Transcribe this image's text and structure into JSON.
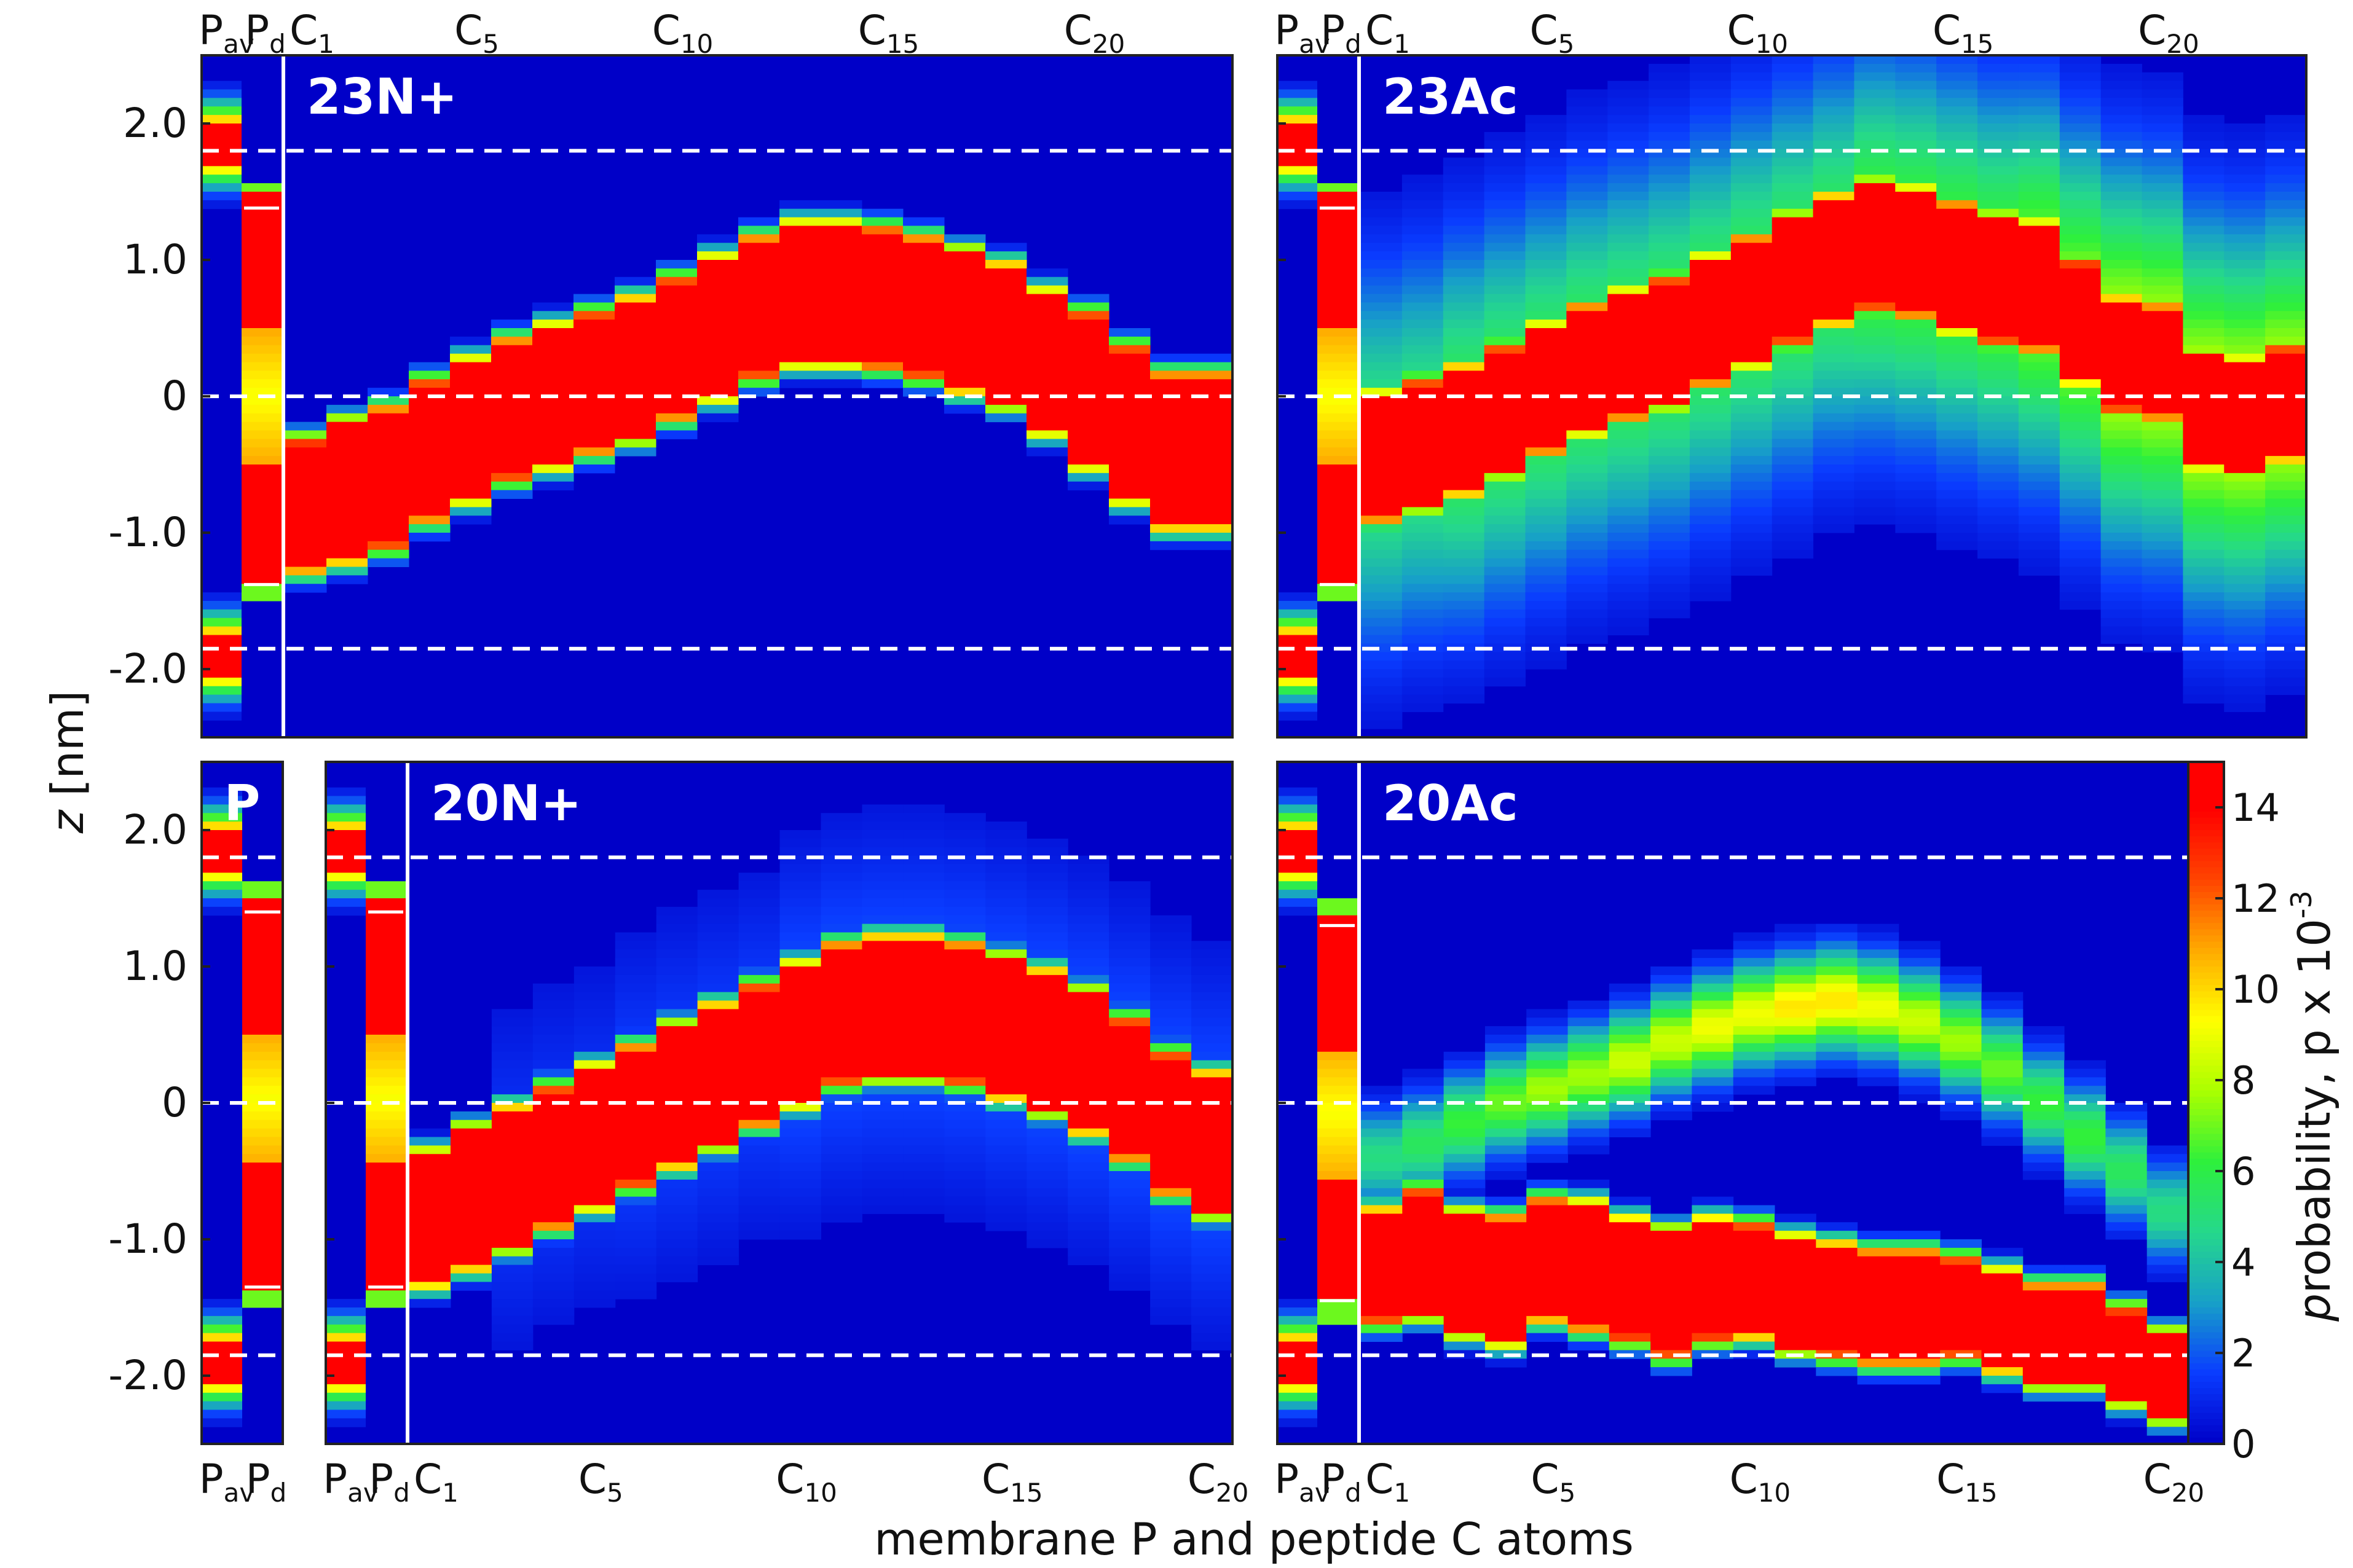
{
  "chart_data": {
    "type": "heatmap",
    "xlabel": "membrane P and peptide C atoms",
    "ylabel": "z [nm]",
    "ylim": [
      -2.5,
      2.5
    ],
    "yticks": [
      "2.0",
      "1.0",
      "0",
      "-1.0",
      "-2.0"
    ],
    "reference_lines_nm": [
      1.8,
      0,
      -1.85
    ],
    "colorbar": {
      "label": "probability, p x 10",
      "exponent": "-3",
      "range": [
        0,
        15
      ],
      "ticks": [
        "0",
        "2",
        "4",
        "6",
        "8",
        "10",
        "12",
        "14"
      ],
      "colors": [
        "#0000c8",
        "#0a3cff",
        "#17a0c8",
        "#25d88c",
        "#2ef03c",
        "#aaff00",
        "#ffff00",
        "#ffaa00",
        "#ff4400",
        "#ff0000"
      ]
    },
    "panels": [
      {
        "name": "23N+",
        "p_columns": [
          "Pav",
          "Pd"
        ],
        "p_tick_labels": [
          {
            "main": "P",
            "sub": "av"
          },
          {
            "main": "P",
            "sub": "d"
          }
        ],
        "c_tick_labels": [
          {
            "main": "C",
            "sub": "1",
            "index": 1
          },
          {
            "main": "C",
            "sub": "5",
            "index": 5
          },
          {
            "main": "C",
            "sub": "10",
            "index": 10
          },
          {
            "main": "C",
            "sub": "15",
            "index": 15
          },
          {
            "main": "C",
            "sub": "20",
            "index": 20
          }
        ],
        "n_residues": 23,
        "pav_peaks": [
          1.85,
          -1.9
        ],
        "pd_range": [
          -1.38,
          1.38
        ],
        "center": [
          -0.8,
          -0.7,
          -0.6,
          -0.4,
          -0.25,
          -0.1,
          0.0,
          0.1,
          0.2,
          0.35,
          0.5,
          0.65,
          0.75,
          0.75,
          0.72,
          0.65,
          0.55,
          0.45,
          0.25,
          0.05,
          -0.2,
          -0.4,
          -0.4
        ],
        "halfwidth": [
          0.42,
          0.45,
          0.45,
          0.45,
          0.45,
          0.45,
          0.45,
          0.45,
          0.45,
          0.45,
          0.45,
          0.45,
          0.45,
          0.45,
          0.45,
          0.45,
          0.45,
          0.45,
          0.45,
          0.5,
          0.5,
          0.5,
          0.5
        ],
        "tail": [
          0.05,
          0.05,
          0.05,
          0.05,
          0.05,
          0.05,
          0.05,
          0.05,
          0.05,
          0.05,
          0.05,
          0.05,
          0.05,
          0.05,
          0.05,
          0.05,
          0.05,
          0.05,
          0.05,
          0.05,
          0.05,
          0.05,
          0.05
        ]
      },
      {
        "name": "23Ac",
        "p_columns": [
          "Pav",
          "Pd"
        ],
        "p_tick_labels": [
          {
            "main": "P",
            "sub": "av"
          },
          {
            "main": "P",
            "sub": "d"
          }
        ],
        "c_tick_labels": [
          {
            "main": "C",
            "sub": "1",
            "index": 1
          },
          {
            "main": "C",
            "sub": "5",
            "index": 5
          },
          {
            "main": "C",
            "sub": "10",
            "index": 10
          },
          {
            "main": "C",
            "sub": "15",
            "index": 15
          },
          {
            "main": "C",
            "sub": "20",
            "index": 20
          }
        ],
        "n_residues": 23,
        "pav_peaks": [
          1.85,
          -1.9
        ],
        "pd_range": [
          -1.38,
          1.38
        ],
        "center": [
          -0.45,
          -0.35,
          -0.25,
          -0.1,
          0.05,
          0.2,
          0.3,
          0.4,
          0.55,
          0.7,
          0.85,
          1.0,
          1.1,
          1.05,
          0.95,
          0.85,
          0.8,
          0.55,
          0.3,
          0.25,
          -0.1,
          -0.15,
          -0.05
        ],
        "halfwidth": [
          0.4,
          0.4,
          0.4,
          0.4,
          0.4,
          0.4,
          0.4,
          0.4,
          0.4,
          0.4,
          0.4,
          0.4,
          0.4,
          0.4,
          0.4,
          0.4,
          0.4,
          0.38,
          0.35,
          0.35,
          0.35,
          0.35,
          0.35
        ],
        "tail": [
          0.4,
          0.4,
          0.45,
          0.45,
          0.45,
          0.45,
          0.45,
          0.45,
          0.45,
          0.45,
          0.45,
          0.45,
          0.5,
          0.5,
          0.5,
          0.5,
          0.55,
          0.55,
          0.6,
          0.6,
          0.6,
          0.6,
          0.6
        ]
      },
      {
        "name": "P",
        "p_columns": [
          "Pav",
          "Pd"
        ],
        "p_tick_labels": [
          {
            "main": "P",
            "sub": "av"
          },
          {
            "main": "P",
            "sub": "d"
          }
        ],
        "c_tick_labels": [],
        "n_residues": 0,
        "pav_peaks": [
          1.85,
          -1.9
        ],
        "pd_range": [
          -1.35,
          1.4
        ],
        "center": [],
        "halfwidth": [],
        "tail": []
      },
      {
        "name": "20N+",
        "p_columns": [
          "Pav",
          "Pd"
        ],
        "p_tick_labels": [
          {
            "main": "P",
            "sub": "av"
          },
          {
            "main": "P",
            "sub": "d"
          }
        ],
        "c_tick_labels": [
          {
            "main": "C",
            "sub": "1",
            "index": 1
          },
          {
            "main": "C",
            "sub": "5",
            "index": 5
          },
          {
            "main": "C",
            "sub": "10",
            "index": 10
          },
          {
            "main": "C",
            "sub": "15",
            "index": 15
          },
          {
            "main": "C",
            "sub": "20",
            "index": 20
          }
        ],
        "n_residues": 20,
        "pav_peaks": [
          1.85,
          -1.9
        ],
        "pd_range": [
          -1.35,
          1.4
        ],
        "center": [
          -0.85,
          -0.7,
          -0.55,
          -0.4,
          -0.25,
          -0.1,
          0.05,
          0.2,
          0.35,
          0.5,
          0.65,
          0.7,
          0.7,
          0.65,
          0.55,
          0.45,
          0.3,
          0.1,
          -0.15,
          -0.3
        ],
        "halfwidth": [
          0.42,
          0.45,
          0.45,
          0.45,
          0.45,
          0.45,
          0.45,
          0.45,
          0.45,
          0.45,
          0.45,
          0.45,
          0.45,
          0.45,
          0.45,
          0.45,
          0.45,
          0.45,
          0.45,
          0.45
        ],
        "tail": [
          0.05,
          0.05,
          0.1,
          0.1,
          0.1,
          0.12,
          0.12,
          0.12,
          0.12,
          0.15,
          0.15,
          0.15,
          0.15,
          0.15,
          0.15,
          0.15,
          0.15,
          0.15,
          0.15,
          0.15
        ]
      },
      {
        "name": "20Ac",
        "p_columns": [
          "Pav",
          "Pd"
        ],
        "p_tick_labels": [
          {
            "main": "P",
            "sub": "av"
          },
          {
            "main": "P",
            "sub": "d"
          }
        ],
        "c_tick_labels": [
          {
            "main": "C",
            "sub": "1",
            "index": 1
          },
          {
            "main": "C",
            "sub": "5",
            "index": 5
          },
          {
            "main": "C",
            "sub": "10",
            "index": 10
          },
          {
            "main": "C",
            "sub": "15",
            "index": 15
          },
          {
            "main": "C",
            "sub": "20",
            "index": 20
          }
        ],
        "n_residues": 20,
        "pav_peaks": [
          1.85,
          -1.9
        ],
        "pd_range": [
          -1.45,
          1.3
        ],
        "center": [
          -1.2,
          -1.1,
          -1.25,
          -1.3,
          -1.15,
          -1.2,
          -1.3,
          -1.4,
          -1.3,
          -1.3,
          -1.4,
          -1.45,
          -1.5,
          -1.5,
          -1.5,
          -1.6,
          -1.7,
          -1.7,
          -1.85,
          -2.0
        ],
        "halfwidth": [
          0.35,
          0.4,
          0.38,
          0.4,
          0.38,
          0.4,
          0.38,
          0.4,
          0.38,
          0.35,
          0.35,
          0.35,
          0.35,
          0.35,
          0.3,
          0.3,
          0.3,
          0.3,
          0.28,
          0.25
        ],
        "second_center": [
          -0.4,
          -0.3,
          -0.15,
          0.0,
          0.1,
          0.2,
          0.3,
          0.45,
          0.55,
          0.65,
          0.7,
          0.75,
          0.7,
          0.6,
          0.45,
          0.25,
          0.0,
          -0.25,
          -0.5,
          -0.8
        ],
        "second_amp": [
          0.35,
          0.4,
          0.45,
          0.5,
          0.55,
          0.55,
          0.6,
          0.6,
          0.65,
          0.65,
          0.7,
          0.7,
          0.65,
          0.6,
          0.55,
          0.5,
          0.45,
          0.45,
          0.4,
          0.35
        ]
      }
    ]
  }
}
